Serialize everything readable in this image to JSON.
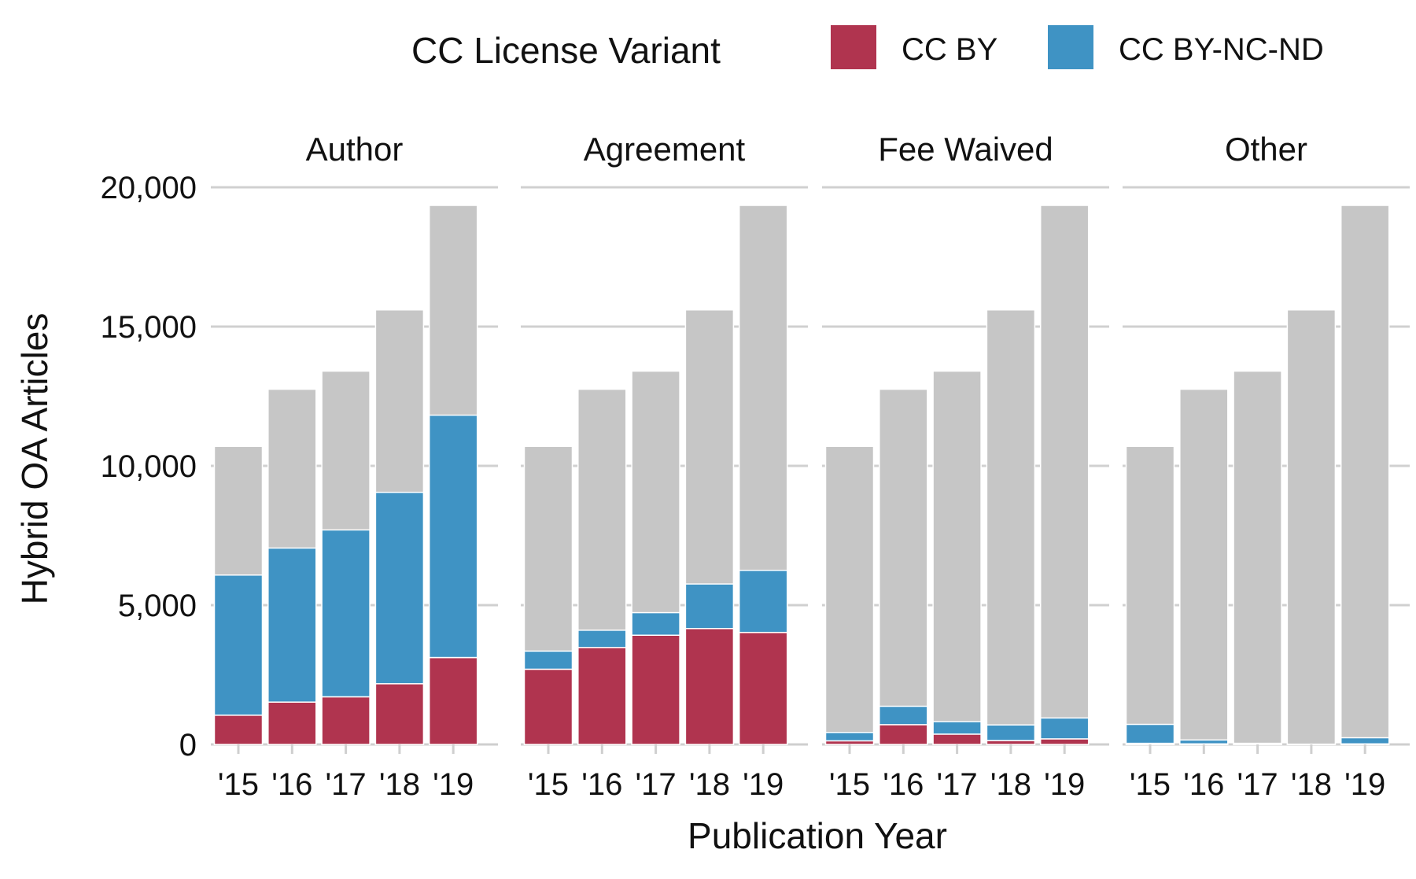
{
  "legend": {
    "title": "CC License Variant",
    "position": "top-right",
    "items": [
      {
        "label": "CC BY",
        "color": "#B0344F"
      },
      {
        "label": "CC BY-NC-ND",
        "color": "#3F93C4"
      }
    ]
  },
  "background_color": "#C6C6C6",
  "chart_data": {
    "type": "bar",
    "stacked": true,
    "xlabel": "Publication Year",
    "ylabel": "Hybrid OA Articles",
    "ylim": [
      0,
      20000
    ],
    "yticks": [
      0,
      5000,
      10000,
      15000,
      20000
    ],
    "ytick_labels": [
      "0",
      "5,000",
      "10,000",
      "15,000",
      "20,000"
    ],
    "grid": true,
    "categories": [
      "'15",
      "'16",
      "'17",
      "'18",
      "'19"
    ],
    "total_articles": [
      10700,
      12750,
      13400,
      15600,
      19350
    ],
    "panels": [
      {
        "name": "Author",
        "series": [
          {
            "name": "CC BY",
            "values": [
              1050,
              1520,
              1710,
              2180,
              3120
            ]
          },
          {
            "name": "CC BY-NC-ND",
            "values": [
              5030,
              5530,
              5990,
              6870,
              8700
            ]
          }
        ]
      },
      {
        "name": "Agreement",
        "series": [
          {
            "name": "CC BY",
            "values": [
              2700,
              3480,
              3920,
              4160,
              4020
            ]
          },
          {
            "name": "CC BY-NC-ND",
            "values": [
              650,
              620,
              810,
              1600,
              2230
            ]
          }
        ]
      },
      {
        "name": "Fee Waived",
        "series": [
          {
            "name": "CC BY",
            "values": [
              130,
              710,
              370,
              140,
              200
            ]
          },
          {
            "name": "CC BY-NC-ND",
            "values": [
              300,
              660,
              450,
              560,
              750
            ]
          }
        ]
      },
      {
        "name": "Other",
        "series": [
          {
            "name": "CC BY",
            "values": [
              40,
              20,
              10,
              10,
              20
            ]
          },
          {
            "name": "CC BY-NC-ND",
            "values": [
              680,
              140,
              30,
              0,
              220
            ]
          }
        ]
      }
    ]
  }
}
